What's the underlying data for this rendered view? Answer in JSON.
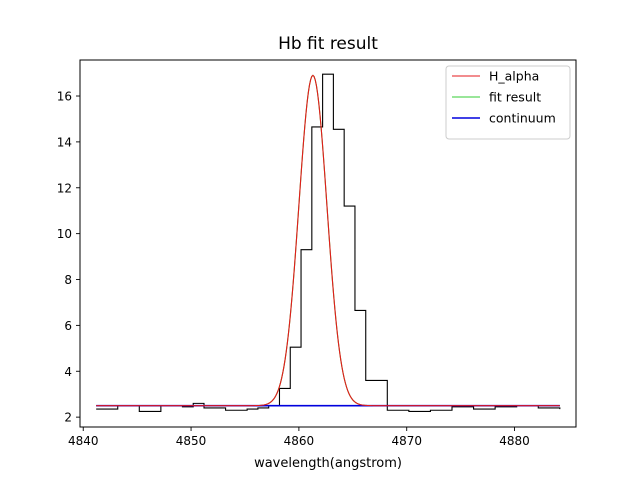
{
  "chart_data": {
    "type": "line",
    "title": "Hb fit result",
    "xlabel": "wavelength(angstrom)",
    "ylabel": "",
    "xlim": [
      4839.7,
      4885.7
    ],
    "ylim": [
      1.57,
      17.57
    ],
    "xticks": [
      4840,
      4850,
      4860,
      4870,
      4880
    ],
    "yticks": [
      2,
      4,
      6,
      8,
      10,
      12,
      14,
      16
    ],
    "grid": false,
    "legend": {
      "placement": "top-right"
    },
    "series": [
      {
        "name": "H_alpha",
        "style": "line",
        "color": "#e41a1c",
        "model": {
          "kind": "gaussian",
          "center": 4861.3,
          "sigma": 1.3,
          "amplitude": 14.4,
          "baseline": 2.5
        },
        "x_range": [
          4841.2,
          4884.2
        ]
      },
      {
        "name": "fit result",
        "style": "line",
        "color": "#33cc33",
        "model": {
          "kind": "gaussian",
          "center": 4861.3,
          "sigma": 1.3,
          "amplitude": 14.4,
          "baseline": 2.5
        },
        "x_range": [
          4841.2,
          4884.2
        ]
      },
      {
        "name": "continuum",
        "style": "line",
        "color": "#0000dd",
        "x": [
          4841.2,
          4884.2
        ],
        "y": [
          2.5,
          2.5
        ]
      },
      {
        "name": "",
        "style": "step",
        "color": "#000000",
        "x": [
          4841.2,
          4843.2,
          4845.2,
          4847.2,
          4849.2,
          4850.2,
          4851.2,
          4853.2,
          4855.2,
          4856.2,
          4857.2,
          4858.2,
          4859.2,
          4860.2,
          4861.2,
          4862.2,
          4863.2,
          4864.2,
          4865.2,
          4866.2,
          4868.2,
          4870.2,
          4872.2,
          4874.2,
          4876.2,
          4878.2,
          4880.2,
          4882.2,
          4884.2
        ],
        "y": [
          2.35,
          2.5,
          2.25,
          2.5,
          2.45,
          2.6,
          2.4,
          2.3,
          2.35,
          2.4,
          2.5,
          3.25,
          5.05,
          9.3,
          14.65,
          16.95,
          14.55,
          11.2,
          6.65,
          3.6,
          2.3,
          2.25,
          2.3,
          2.45,
          2.35,
          2.45,
          2.5,
          2.4,
          2.35
        ]
      }
    ]
  }
}
